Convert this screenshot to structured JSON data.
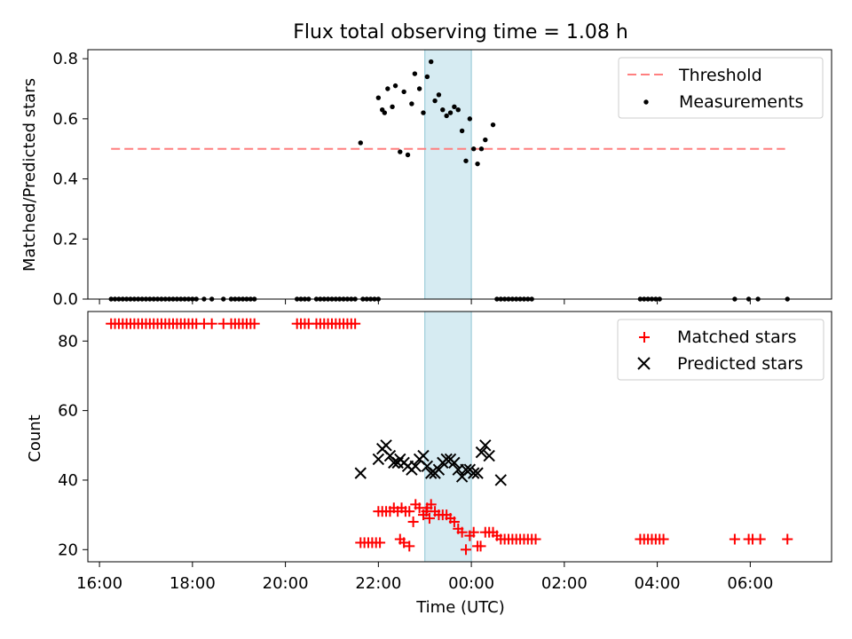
{
  "chart_data": [
    {
      "type": "scatter",
      "title": "Flux total observing time = 1.08 h",
      "xlabel": "",
      "ylabel": "Matched/Predicted stars",
      "xlim": [
        "15:45",
        "07:45"
      ],
      "ylim": [
        0,
        0.83
      ],
      "yticks": [
        "0.0",
        "0.2",
        "0.4",
        "0.6",
        "0.8"
      ],
      "grid": false,
      "legend_position": "top-right",
      "highlight_span": {
        "x": [
          "23:00",
          "00:00"
        ],
        "color": "#add8e6"
      },
      "threshold": {
        "name": "Threshold",
        "value": 0.5,
        "x": [
          "16:15",
          "06:45"
        ],
        "color": "#ff7f7f"
      },
      "series": [
        {
          "name": "Measurements",
          "color": "#000000",
          "points": [
            [
              "16:15",
              0
            ],
            [
              "16:20",
              0
            ],
            [
              "16:25",
              0
            ],
            [
              "16:30",
              0
            ],
            [
              "16:35",
              0
            ],
            [
              "16:40",
              0
            ],
            [
              "16:45",
              0
            ],
            [
              "16:50",
              0
            ],
            [
              "16:55",
              0
            ],
            [
              "17:00",
              0
            ],
            [
              "17:05",
              0
            ],
            [
              "17:10",
              0
            ],
            [
              "17:15",
              0
            ],
            [
              "17:20",
              0
            ],
            [
              "17:25",
              0
            ],
            [
              "17:30",
              0
            ],
            [
              "17:35",
              0
            ],
            [
              "17:40",
              0
            ],
            [
              "17:45",
              0
            ],
            [
              "17:50",
              0
            ],
            [
              "17:55",
              0
            ],
            [
              "18:00",
              0
            ],
            [
              "18:05",
              0
            ],
            [
              "18:15",
              0
            ],
            [
              "18:25",
              0
            ],
            [
              "18:40",
              0
            ],
            [
              "18:50",
              0
            ],
            [
              "18:55",
              0
            ],
            [
              "19:00",
              0
            ],
            [
              "19:05",
              0
            ],
            [
              "19:10",
              0
            ],
            [
              "19:15",
              0
            ],
            [
              "19:20",
              0
            ],
            [
              "20:15",
              0
            ],
            [
              "20:20",
              0
            ],
            [
              "20:25",
              0
            ],
            [
              "20:30",
              0
            ],
            [
              "20:40",
              0
            ],
            [
              "20:45",
              0
            ],
            [
              "20:50",
              0
            ],
            [
              "20:55",
              0
            ],
            [
              "21:00",
              0
            ],
            [
              "21:05",
              0
            ],
            [
              "21:10",
              0
            ],
            [
              "21:15",
              0
            ],
            [
              "21:20",
              0
            ],
            [
              "21:25",
              0
            ],
            [
              "21:30",
              0
            ],
            [
              "21:40",
              0
            ],
            [
              "21:45",
              0
            ],
            [
              "21:50",
              0
            ],
            [
              "21:55",
              0
            ],
            [
              "22:00",
              0
            ],
            [
              "21:37",
              0.52
            ],
            [
              "22:00",
              0.67
            ],
            [
              "22:05",
              0.63
            ],
            [
              "22:08",
              0.62
            ],
            [
              "22:12",
              0.7
            ],
            [
              "22:18",
              0.64
            ],
            [
              "22:22",
              0.71
            ],
            [
              "22:28",
              0.49
            ],
            [
              "22:33",
              0.69
            ],
            [
              "22:38",
              0.48
            ],
            [
              "22:43",
              0.65
            ],
            [
              "22:47",
              0.75
            ],
            [
              "22:53",
              0.7
            ],
            [
              "22:58",
              0.62
            ],
            [
              "23:03",
              0.74
            ],
            [
              "23:08",
              0.79
            ],
            [
              "23:13",
              0.66
            ],
            [
              "23:18",
              0.68
            ],
            [
              "23:23",
              0.63
            ],
            [
              "23:28",
              0.61
            ],
            [
              "23:33",
              0.62
            ],
            [
              "23:38",
              0.64
            ],
            [
              "23:43",
              0.63
            ],
            [
              "23:48",
              0.56
            ],
            [
              "23:53",
              0.46
            ],
            [
              "23:58",
              0.6
            ],
            [
              "00:03",
              0.5
            ],
            [
              "00:08",
              0.45
            ],
            [
              "00:13",
              0.5
            ],
            [
              "00:18",
              0.53
            ],
            [
              "00:28",
              0.58
            ],
            [
              "00:33",
              0
            ],
            [
              "00:38",
              0
            ],
            [
              "00:43",
              0
            ],
            [
              "00:48",
              0
            ],
            [
              "00:53",
              0
            ],
            [
              "00:58",
              0
            ],
            [
              "01:03",
              0
            ],
            [
              "01:08",
              0
            ],
            [
              "01:13",
              0
            ],
            [
              "01:18",
              0
            ],
            [
              "03:38",
              0
            ],
            [
              "03:43",
              0
            ],
            [
              "03:48",
              0
            ],
            [
              "03:53",
              0
            ],
            [
              "03:58",
              0
            ],
            [
              "04:03",
              0
            ],
            [
              "05:40",
              0
            ],
            [
              "05:58",
              0
            ],
            [
              "06:10",
              0
            ],
            [
              "06:48",
              0
            ]
          ]
        }
      ]
    },
    {
      "type": "scatter",
      "title": "",
      "xlabel": "Time (UTC)",
      "ylabel": "Count",
      "xlim": [
        "15:45",
        "07:45"
      ],
      "ylim": [
        16.5,
        88.5
      ],
      "xticks": [
        "16:00",
        "18:00",
        "20:00",
        "22:00",
        "00:00",
        "02:00",
        "04:00",
        "06:00"
      ],
      "yticks": [
        "20",
        "40",
        "60",
        "80"
      ],
      "grid": false,
      "legend_position": "top-right",
      "highlight_span": {
        "x": [
          "23:00",
          "00:00"
        ],
        "color": "#add8e6"
      },
      "series": [
        {
          "name": "Matched stars",
          "marker": "+",
          "color": "#ff0000",
          "points": [
            [
              "16:15",
              85
            ],
            [
              "16:20",
              85
            ],
            [
              "16:25",
              85
            ],
            [
              "16:30",
              85
            ],
            [
              "16:35",
              85
            ],
            [
              "16:40",
              85
            ],
            [
              "16:45",
              85
            ],
            [
              "16:50",
              85
            ],
            [
              "16:55",
              85
            ],
            [
              "17:00",
              85
            ],
            [
              "17:05",
              85
            ],
            [
              "17:10",
              85
            ],
            [
              "17:15",
              85
            ],
            [
              "17:20",
              85
            ],
            [
              "17:25",
              85
            ],
            [
              "17:30",
              85
            ],
            [
              "17:35",
              85
            ],
            [
              "17:40",
              85
            ],
            [
              "17:45",
              85
            ],
            [
              "17:50",
              85
            ],
            [
              "17:55",
              85
            ],
            [
              "18:00",
              85
            ],
            [
              "18:05",
              85
            ],
            [
              "18:15",
              85
            ],
            [
              "18:25",
              85
            ],
            [
              "18:40",
              85
            ],
            [
              "18:50",
              85
            ],
            [
              "18:55",
              85
            ],
            [
              "19:00",
              85
            ],
            [
              "19:05",
              85
            ],
            [
              "19:10",
              85
            ],
            [
              "19:15",
              85
            ],
            [
              "19:20",
              85
            ],
            [
              "20:15",
              85
            ],
            [
              "20:20",
              85
            ],
            [
              "20:25",
              85
            ],
            [
              "20:30",
              85
            ],
            [
              "20:40",
              85
            ],
            [
              "20:45",
              85
            ],
            [
              "20:50",
              85
            ],
            [
              "20:55",
              85
            ],
            [
              "21:00",
              85
            ],
            [
              "21:05",
              85
            ],
            [
              "21:10",
              85
            ],
            [
              "21:15",
              85
            ],
            [
              "21:20",
              85
            ],
            [
              "21:25",
              85
            ],
            [
              "21:30",
              85
            ],
            [
              "21:37",
              22
            ],
            [
              "21:42",
              22
            ],
            [
              "21:47",
              22
            ],
            [
              "21:52",
              22
            ],
            [
              "21:57",
              22
            ],
            [
              "22:02",
              22
            ],
            [
              "22:00",
              31
            ],
            [
              "22:05",
              31
            ],
            [
              "22:10",
              31
            ],
            [
              "22:15",
              31
            ],
            [
              "22:20",
              32
            ],
            [
              "22:25",
              31
            ],
            [
              "22:30",
              32
            ],
            [
              "22:35",
              31
            ],
            [
              "22:40",
              31
            ],
            [
              "22:48",
              33
            ],
            [
              "22:53",
              32
            ],
            [
              "23:03",
              32
            ],
            [
              "23:08",
              33
            ],
            [
              "23:13",
              31
            ],
            [
              "23:18",
              30
            ],
            [
              "23:23",
              30
            ],
            [
              "23:28",
              30
            ],
            [
              "23:33",
              29
            ],
            [
              "23:38",
              28
            ],
            [
              "23:43",
              26
            ],
            [
              "23:48",
              25
            ],
            [
              "22:28",
              23
            ],
            [
              "22:33",
              22
            ],
            [
              "22:40",
              21
            ],
            [
              "22:45",
              28
            ],
            [
              "22:58",
              30
            ],
            [
              "23:02",
              31
            ],
            [
              "23:06",
              29
            ],
            [
              "23:53",
              20
            ],
            [
              "23:58",
              24
            ],
            [
              "00:03",
              25
            ],
            [
              "00:08",
              21
            ],
            [
              "00:12",
              21
            ],
            [
              "00:18",
              25
            ],
            [
              "00:23",
              25
            ],
            [
              "00:28",
              25
            ],
            [
              "00:33",
              24
            ],
            [
              "00:38",
              23
            ],
            [
              "00:43",
              23
            ],
            [
              "00:48",
              23
            ],
            [
              "00:53",
              23
            ],
            [
              "00:58",
              23
            ],
            [
              "01:03",
              23
            ],
            [
              "01:08",
              23
            ],
            [
              "01:13",
              23
            ],
            [
              "01:18",
              23
            ],
            [
              "01:23",
              23
            ],
            [
              "03:38",
              23
            ],
            [
              "03:43",
              23
            ],
            [
              "03:48",
              23
            ],
            [
              "03:53",
              23
            ],
            [
              "03:58",
              23
            ],
            [
              "04:03",
              23
            ],
            [
              "04:08",
              23
            ],
            [
              "05:40",
              23
            ],
            [
              "05:58",
              23
            ],
            [
              "06:03",
              23
            ],
            [
              "06:13",
              23
            ],
            [
              "06:48",
              23
            ]
          ]
        },
        {
          "name": "Predicted stars",
          "marker": "x",
          "color": "#000000",
          "points": [
            [
              "21:37",
              42
            ],
            [
              "22:00",
              46
            ],
            [
              "22:05",
              49
            ],
            [
              "22:10",
              50
            ],
            [
              "22:15",
              47
            ],
            [
              "22:20",
              45
            ],
            [
              "22:25",
              45
            ],
            [
              "22:28",
              46
            ],
            [
              "22:33",
              45
            ],
            [
              "22:38",
              44
            ],
            [
              "22:43",
              43
            ],
            [
              "22:48",
              44
            ],
            [
              "22:53",
              46
            ],
            [
              "22:58",
              47
            ],
            [
              "23:03",
              44
            ],
            [
              "23:08",
              42
            ],
            [
              "23:13",
              42
            ],
            [
              "23:18",
              43
            ],
            [
              "23:23",
              45
            ],
            [
              "23:28",
              46
            ],
            [
              "23:33",
              46
            ],
            [
              "23:38",
              45
            ],
            [
              "23:43",
              43
            ],
            [
              "23:48",
              41
            ],
            [
              "23:53",
              43
            ],
            [
              "23:58",
              43
            ],
            [
              "00:03",
              42
            ],
            [
              "00:08",
              42
            ],
            [
              "00:13",
              48
            ],
            [
              "00:18",
              50
            ],
            [
              "00:23",
              47
            ],
            [
              "00:38",
              40
            ]
          ]
        }
      ]
    }
  ]
}
